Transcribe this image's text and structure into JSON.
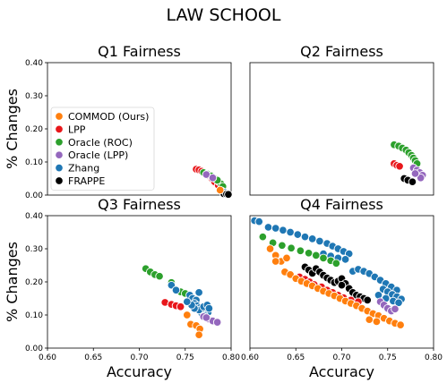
{
  "figure": {
    "title": "LAW SCHOOL",
    "xlabel": "Accuracy",
    "ylabel": "% Changes"
  },
  "legend": {
    "placement": "left of Q1 panel",
    "items": [
      {
        "label": "COMMOD (Ours)",
        "color": "#ff7f0e"
      },
      {
        "label": "LPP",
        "color": "#e8171b"
      },
      {
        "label": "Oracle (ROC)",
        "color": "#2ca02c"
      },
      {
        "label": "Oracle (LPP)",
        "color": "#9467bd"
      },
      {
        "label": "Zhang",
        "color": "#1f77b4"
      },
      {
        "label": "FRAPPE",
        "color": "#000000"
      }
    ]
  },
  "chart_data": [
    {
      "type": "scatter",
      "title": "Q1 Fairness",
      "xlabel": "",
      "ylabel": "% Changes",
      "xlim": [
        0.6,
        0.8
      ],
      "ylim": [
        0.0,
        0.4
      ],
      "xticks": [],
      "yticks": [
        "0.00",
        "0.10",
        "0.20",
        "0.30",
        "0.40"
      ],
      "grid": false,
      "series": [
        {
          "name": "LPP",
          "color": "#e8171b",
          "points": [
            [
              0.762,
              0.078
            ],
            [
              0.765,
              0.076
            ],
            [
              0.768,
              0.072
            ],
            [
              0.772,
              0.066
            ],
            [
              0.776,
              0.058
            ],
            [
              0.779,
              0.05
            ],
            [
              0.782,
              0.04
            ],
            [
              0.786,
              0.03
            ]
          ]
        },
        {
          "name": "Oracle (ROC)",
          "color": "#2ca02c",
          "points": [
            [
              0.77,
              0.068
            ],
            [
              0.774,
              0.064
            ],
            [
              0.778,
              0.058
            ],
            [
              0.782,
              0.05
            ],
            [
              0.786,
              0.042
            ],
            [
              0.789,
              0.034
            ],
            [
              0.791,
              0.026
            ],
            [
              0.785,
              0.045
            ]
          ]
        },
        {
          "name": "Oracle (LPP)",
          "color": "#9467bd",
          "points": [
            [
              0.773,
              0.062
            ],
            [
              0.78,
              0.052
            ]
          ]
        },
        {
          "name": "Zhang",
          "color": "#1f77b4",
          "points": [
            [
              0.79,
              0.012
            ],
            [
              0.793,
              0.008
            ]
          ]
        },
        {
          "name": "FRAPPE",
          "color": "#000000",
          "points": [
            [
              0.792,
              0.004
            ],
            [
              0.795,
              0.003
            ],
            [
              0.797,
              0.002
            ]
          ]
        },
        {
          "name": "COMMOD (Ours)",
          "color": "#ff7f0e",
          "points": [
            [
              0.788,
              0.015
            ]
          ]
        }
      ]
    },
    {
      "type": "scatter",
      "title": "Q2 Fairness",
      "xlabel": "",
      "ylabel": "",
      "xlim": [
        0.6,
        0.8
      ],
      "ylim": [
        0.0,
        0.4
      ],
      "xticks": [],
      "yticks": [],
      "grid": false,
      "series": [
        {
          "name": "LPP",
          "color": "#e8171b",
          "points": [
            [
              0.757,
              0.095
            ],
            [
              0.76,
              0.09
            ],
            [
              0.763,
              0.087
            ]
          ]
        },
        {
          "name": "Oracle (ROC)",
          "color": "#2ca02c",
          "points": [
            [
              0.757,
              0.152
            ],
            [
              0.762,
              0.148
            ],
            [
              0.766,
              0.142
            ],
            [
              0.77,
              0.136
            ],
            [
              0.773,
              0.128
            ],
            [
              0.776,
              0.12
            ],
            [
              0.778,
              0.112
            ],
            [
              0.78,
              0.104
            ],
            [
              0.782,
              0.095
            ]
          ]
        },
        {
          "name": "Oracle (LPP)",
          "color": "#9467bd",
          "points": [
            [
              0.778,
              0.082
            ],
            [
              0.782,
              0.075
            ],
            [
              0.785,
              0.068
            ],
            [
              0.788,
              0.06
            ],
            [
              0.786,
              0.052
            ],
            [
              0.78,
              0.065
            ]
          ]
        },
        {
          "name": "Zhang",
          "color": "#1f77b4",
          "points": []
        },
        {
          "name": "FRAPPE",
          "color": "#000000",
          "points": [
            [
              0.768,
              0.05
            ],
            [
              0.772,
              0.045
            ],
            [
              0.777,
              0.04
            ]
          ]
        },
        {
          "name": "COMMOD (Ours)",
          "color": "#ff7f0e",
          "points": []
        }
      ]
    },
    {
      "type": "scatter",
      "title": "Q3 Fairness",
      "xlabel": "Accuracy",
      "ylabel": "% Changes",
      "xlim": [
        0.6,
        0.8
      ],
      "ylim": [
        0.0,
        0.4
      ],
      "xticks": [
        "0.60",
        "0.65",
        "0.70",
        "0.75",
        "0.80"
      ],
      "yticks": [
        "0.00",
        "0.10",
        "0.20",
        "0.30",
        "0.40"
      ],
      "grid": false,
      "series": [
        {
          "name": "Oracle (ROC)",
          "color": "#2ca02c",
          "points": [
            [
              0.707,
              0.24
            ],
            [
              0.712,
              0.23
            ],
            [
              0.717,
              0.222
            ],
            [
              0.722,
              0.217
            ],
            [
              0.735,
              0.198
            ],
            [
              0.745,
              0.17
            ],
            [
              0.75,
              0.165
            ]
          ]
        },
        {
          "name": "LPP",
          "color": "#e8171b",
          "points": [
            [
              0.728,
              0.138
            ],
            [
              0.735,
              0.132
            ],
            [
              0.74,
              0.128
            ],
            [
              0.745,
              0.125
            ]
          ]
        },
        {
          "name": "Zhang",
          "color": "#1f77b4",
          "points": [
            [
              0.735,
              0.19
            ],
            [
              0.74,
              0.175
            ],
            [
              0.755,
              0.16
            ],
            [
              0.758,
              0.15
            ],
            [
              0.762,
              0.145
            ],
            [
              0.765,
              0.168
            ],
            [
              0.76,
              0.135
            ],
            [
              0.763,
              0.128
            ],
            [
              0.766,
              0.122
            ],
            [
              0.769,
              0.118
            ],
            [
              0.772,
              0.112
            ],
            [
              0.775,
              0.108
            ],
            [
              0.768,
              0.105
            ],
            [
              0.771,
              0.098
            ],
            [
              0.765,
              0.115
            ],
            [
              0.77,
              0.125
            ],
            [
              0.774,
              0.13
            ],
            [
              0.76,
              0.12
            ],
            [
              0.757,
              0.13
            ],
            [
              0.752,
              0.14
            ],
            [
              0.776,
              0.12
            ]
          ]
        },
        {
          "name": "Oracle (LPP)",
          "color": "#9467bd",
          "points": [
            [
              0.77,
              0.095
            ],
            [
              0.775,
              0.088
            ],
            [
              0.78,
              0.082
            ],
            [
              0.785,
              0.078
            ],
            [
              0.773,
              0.092
            ]
          ]
        },
        {
          "name": "COMMOD (Ours)",
          "color": "#ff7f0e",
          "points": [
            [
              0.752,
              0.1
            ],
            [
              0.756,
              0.072
            ],
            [
              0.762,
              0.068
            ],
            [
              0.766,
              0.058
            ],
            [
              0.765,
              0.04
            ]
          ]
        },
        {
          "name": "FRAPPE",
          "color": "#000000",
          "points": []
        }
      ]
    },
    {
      "type": "scatter",
      "title": "Q4 Fairness",
      "xlabel": "Accuracy",
      "ylabel": "",
      "xlim": [
        0.6,
        0.8
      ],
      "ylim": [
        0.0,
        0.4
      ],
      "xticks": [
        "0.60",
        "0.65",
        "0.70",
        "0.75",
        "0.80"
      ],
      "yticks": [],
      "grid": false,
      "series": [
        {
          "name": "Zhang",
          "color": "#1f77b4",
          "points": [
            [
              0.605,
              0.385
            ],
            [
              0.61,
              0.382
            ],
            [
              0.62,
              0.365
            ],
            [
              0.628,
              0.362
            ],
            [
              0.636,
              0.356
            ],
            [
              0.644,
              0.35
            ],
            [
              0.652,
              0.343
            ],
            [
              0.66,
              0.336
            ],
            [
              0.668,
              0.33
            ],
            [
              0.676,
              0.323
            ],
            [
              0.684,
              0.316
            ],
            [
              0.69,
              0.308
            ],
            [
              0.696,
              0.3
            ],
            [
              0.702,
              0.292
            ],
            [
              0.708,
              0.285
            ],
            [
              0.68,
              0.285
            ],
            [
              0.688,
              0.278
            ],
            [
              0.696,
              0.272
            ],
            [
              0.704,
              0.268
            ],
            [
              0.712,
              0.232
            ],
            [
              0.718,
              0.238
            ],
            [
              0.724,
              0.232
            ],
            [
              0.73,
              0.225
            ],
            [
              0.736,
              0.215
            ],
            [
              0.742,
              0.205
            ],
            [
              0.748,
              0.195
            ],
            [
              0.754,
              0.185
            ],
            [
              0.76,
              0.175
            ],
            [
              0.745,
              0.178
            ],
            [
              0.75,
              0.17
            ],
            [
              0.755,
              0.162
            ],
            [
              0.76,
              0.155
            ],
            [
              0.765,
              0.148
            ],
            [
              0.74,
              0.16
            ],
            [
              0.748,
              0.15
            ],
            [
              0.756,
              0.142
            ],
            [
              0.762,
              0.137
            ]
          ]
        },
        {
          "name": "Oracle (ROC)",
          "color": "#2ca02c",
          "points": [
            [
              0.614,
              0.336
            ],
            [
              0.625,
              0.318
            ],
            [
              0.635,
              0.31
            ],
            [
              0.645,
              0.302
            ],
            [
              0.655,
              0.294
            ],
            [
              0.664,
              0.287
            ],
            [
              0.672,
              0.28
            ],
            [
              0.68,
              0.272
            ],
            [
              0.688,
              0.264
            ],
            [
              0.694,
              0.256
            ]
          ]
        },
        {
          "name": "FRAPPE",
          "color": "#000000",
          "points": [
            [
              0.66,
              0.245
            ],
            [
              0.664,
              0.236
            ],
            [
              0.668,
              0.226
            ],
            [
              0.672,
              0.24
            ],
            [
              0.676,
              0.23
            ],
            [
              0.68,
              0.22
            ],
            [
              0.684,
              0.212
            ],
            [
              0.688,
              0.205
            ],
            [
              0.692,
              0.198
            ],
            [
              0.696,
              0.202
            ],
            [
              0.7,
              0.21
            ],
            [
              0.704,
              0.195
            ],
            [
              0.708,
              0.18
            ],
            [
              0.712,
              0.168
            ],
            [
              0.716,
              0.16
            ],
            [
              0.72,
              0.155
            ],
            [
              0.724,
              0.15
            ],
            [
              0.728,
              0.145
            ],
            [
              0.7,
              0.19
            ]
          ]
        },
        {
          "name": "LPP",
          "color": "#e8171b",
          "points": [
            [
              0.654,
              0.215
            ],
            [
              0.66,
              0.208
            ],
            [
              0.665,
              0.2
            ],
            [
              0.67,
              0.192
            ],
            [
              0.678,
              0.185
            ],
            [
              0.684,
              0.175
            ],
            [
              0.69,
              0.168
            ],
            [
              0.696,
              0.16
            ],
            [
              0.702,
              0.152
            ],
            [
              0.71,
              0.145
            ],
            [
              0.718,
              0.14
            ]
          ]
        },
        {
          "name": "COMMOD (Ours)",
          "color": "#ff7f0e",
          "points": [
            [
              0.622,
              0.3
            ],
            [
              0.628,
              0.28
            ],
            [
              0.634,
              0.262
            ],
            [
              0.64,
              0.272
            ],
            [
              0.628,
              0.262
            ],
            [
              0.638,
              0.23
            ],
            [
              0.644,
              0.222
            ],
            [
              0.65,
              0.21
            ],
            [
              0.656,
              0.202
            ],
            [
              0.662,
              0.195
            ],
            [
              0.668,
              0.188
            ],
            [
              0.674,
              0.18
            ],
            [
              0.68,
              0.172
            ],
            [
              0.686,
              0.165
            ],
            [
              0.692,
              0.158
            ],
            [
              0.698,
              0.15
            ],
            [
              0.704,
              0.142
            ],
            [
              0.71,
              0.135
            ],
            [
              0.716,
              0.128
            ],
            [
              0.722,
              0.12
            ],
            [
              0.728,
              0.112
            ],
            [
              0.734,
              0.104
            ],
            [
              0.74,
              0.098
            ],
            [
              0.746,
              0.09
            ],
            [
              0.752,
              0.082
            ],
            [
              0.758,
              0.075
            ],
            [
              0.764,
              0.07
            ],
            [
              0.73,
              0.086
            ],
            [
              0.738,
              0.08
            ]
          ]
        },
        {
          "name": "Oracle (LPP)",
          "color": "#9467bd",
          "points": [
            [
              0.742,
              0.14
            ],
            [
              0.746,
              0.13
            ],
            [
              0.75,
              0.12
            ],
            [
              0.754,
              0.112
            ],
            [
              0.758,
              0.118
            ]
          ]
        }
      ]
    }
  ]
}
